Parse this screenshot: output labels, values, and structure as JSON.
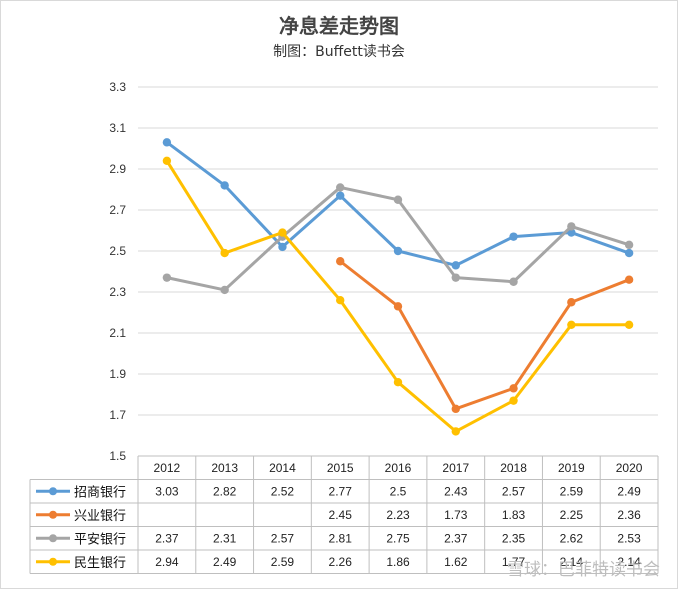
{
  "chart_data": {
    "type": "line",
    "title": "净息差走势图",
    "subtitle": "制图：Buffett读书会",
    "categories": [
      "2012",
      "2013",
      "2014",
      "2015",
      "2016",
      "2017",
      "2018",
      "2019",
      "2020"
    ],
    "ylim": [
      1.5,
      3.3
    ],
    "yticks": [
      "1.5",
      "1.7",
      "1.9",
      "2.1",
      "2.3",
      "2.5",
      "2.7",
      "2.9",
      "3.1",
      "3.3"
    ],
    "grid": true,
    "legend": "data-table",
    "series": [
      {
        "name": "招商银行",
        "color": "#5b9bd5",
        "values": [
          3.03,
          2.82,
          2.52,
          2.77,
          2.5,
          2.43,
          2.57,
          2.59,
          2.49
        ]
      },
      {
        "name": "兴业银行",
        "color": "#ed7d31",
        "values": [
          null,
          null,
          null,
          2.45,
          2.23,
          1.73,
          1.83,
          2.25,
          2.36
        ]
      },
      {
        "name": "平安银行",
        "color": "#a5a5a5",
        "values": [
          2.37,
          2.31,
          2.57,
          2.81,
          2.75,
          2.37,
          2.35,
          2.62,
          2.53
        ]
      },
      {
        "name": "民生银行",
        "color": "#ffc000",
        "values": [
          2.94,
          2.49,
          2.59,
          2.26,
          1.86,
          1.62,
          1.77,
          2.14,
          2.14
        ]
      }
    ]
  },
  "watermark": "雪球：巴菲特读书会"
}
